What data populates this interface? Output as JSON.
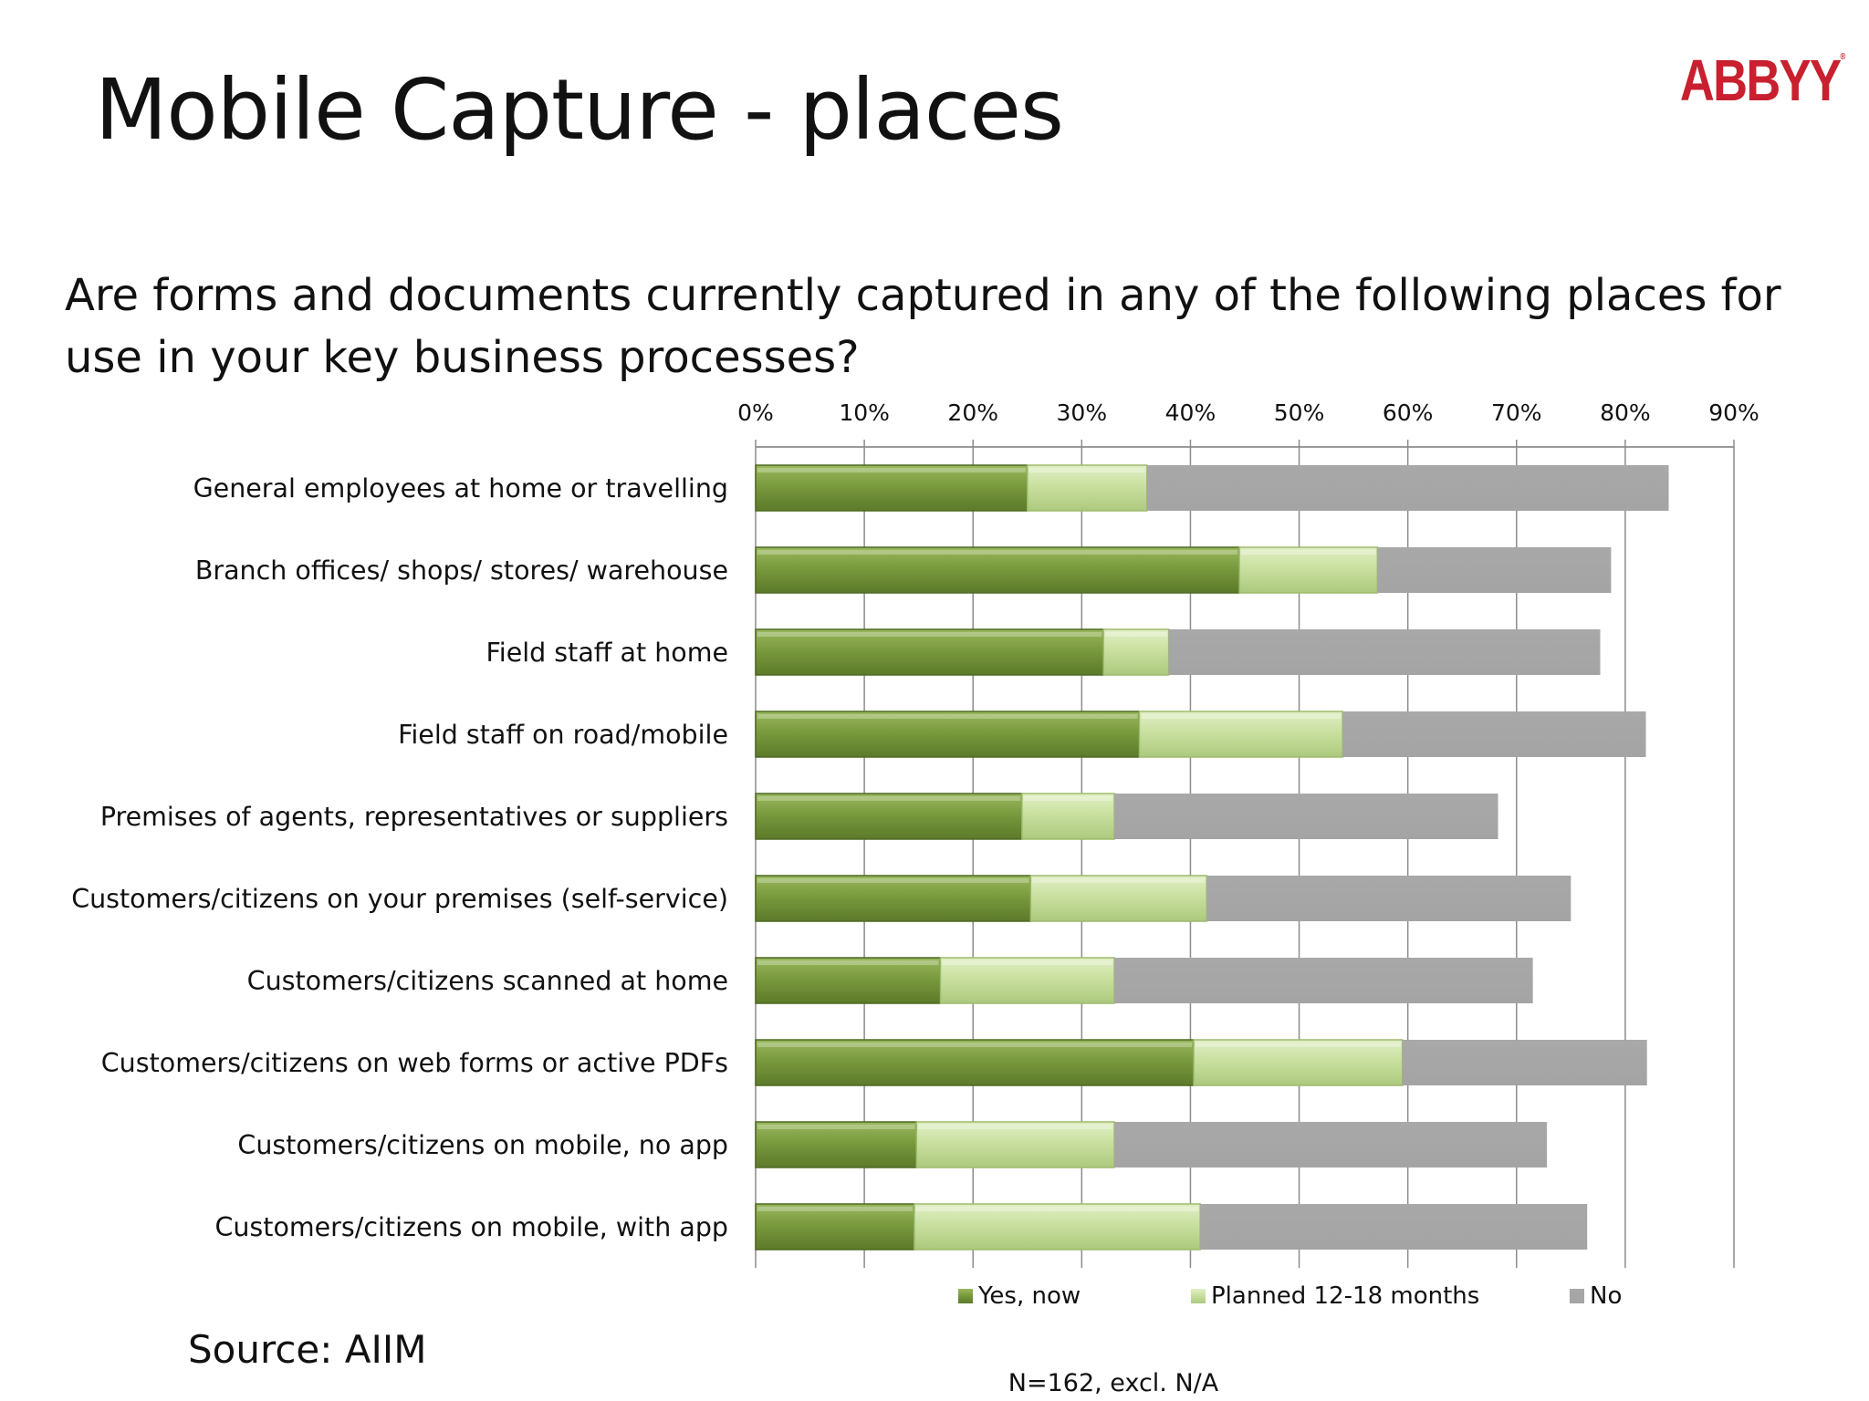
{
  "slide": {
    "title": "Mobile Capture - places",
    "logo_text": "ABBYY",
    "logo_mark": "®",
    "question": "Are forms and documents currently captured in any of the following places for use in your key business processes?",
    "source": "Source: AIIM",
    "brand_color": "#c8202f"
  },
  "chart_data": {
    "type": "bar",
    "orientation": "horizontal",
    "stacked": true,
    "title": "",
    "xlabel": "",
    "ylabel": "",
    "xlim": [
      0,
      90
    ],
    "x_ticks": [
      0,
      10,
      20,
      30,
      40,
      50,
      60,
      70,
      80,
      90
    ],
    "x_tick_labels": [
      "0%",
      "10%",
      "20%",
      "30%",
      "40%",
      "50%",
      "60%",
      "70%",
      "80%",
      "90%"
    ],
    "axis_position": "top",
    "grid": "vertical",
    "legend": "bottom",
    "categories": [
      "General employees at home or travelling",
      "Branch offices/ shops/ stores/ warehouse",
      "Field staff at home",
      "Field staff on road/mobile",
      "Premises of agents, representatives or suppliers",
      "Customers/citizens on your premises (self-service)",
      "Customers/citizens scanned at home",
      "Customers/citizens on web forms or active PDFs",
      "Customers/citizens on mobile, no app",
      "Customers/citizens on mobile, with app"
    ],
    "series": [
      {
        "name": "Yes, now",
        "color": "#76933c",
        "values": [
          25,
          44.5,
          32,
          35.3,
          24.5,
          25.3,
          17,
          40.3,
          14.8,
          14.6
        ]
      },
      {
        "name": "Planned 12-18 months",
        "color": "#c4dc96",
        "values": [
          11,
          12.7,
          6,
          18.7,
          8.5,
          16.2,
          16,
          19.2,
          18.2,
          26.3
        ]
      },
      {
        "name": "No",
        "color": "#a6a6a6",
        "values": [
          48,
          21.5,
          39.7,
          27.9,
          35.3,
          33.5,
          38.5,
          22.5,
          39.8,
          35.6
        ]
      }
    ],
    "note": "N=162, excl. N/A"
  }
}
